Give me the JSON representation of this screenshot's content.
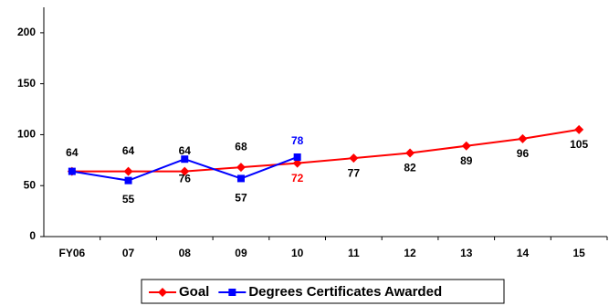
{
  "chart_data": {
    "type": "line",
    "categories": [
      "FY06",
      "07",
      "08",
      "09",
      "10",
      "11",
      "12",
      "13",
      "14",
      "15"
    ],
    "series": [
      {
        "name": "Goal",
        "color": "#ff0000",
        "values": [
          64,
          64,
          64,
          68,
          72,
          77,
          82,
          89,
          96,
          105
        ]
      },
      {
        "name": "Degrees Certificates Awarded",
        "color": "#0000ff",
        "values": [
          64,
          55,
          76,
          57,
          78,
          null,
          null,
          null,
          null,
          null
        ]
      }
    ],
    "ylim": [
      0,
      225
    ],
    "yticks": [
      0,
      50,
      100,
      150,
      200
    ],
    "grid": false,
    "legend": "bottom"
  }
}
